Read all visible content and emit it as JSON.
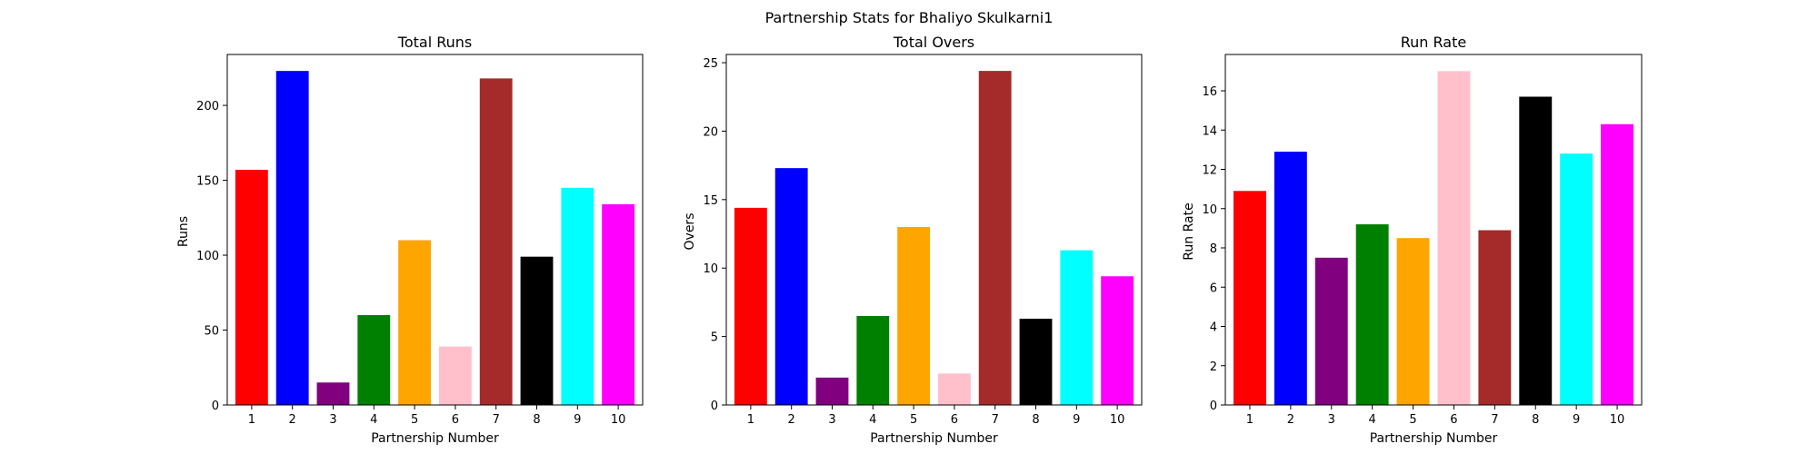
{
  "figure": {
    "title": "Partnership Stats for Bhaliyo Skulkarni1"
  },
  "chart_data": [
    {
      "type": "bar",
      "title": "Total Runs",
      "xlabel": "Partnership Number",
      "ylabel": "Runs",
      "categories": [
        "1",
        "2",
        "3",
        "4",
        "5",
        "6",
        "7",
        "8",
        "9",
        "10"
      ],
      "values": [
        157,
        223,
        15,
        60,
        110,
        39,
        218,
        99,
        145,
        134
      ],
      "colors": [
        "#ff0000",
        "#0000ff",
        "#800080",
        "#008000",
        "#ffa500",
        "#ffc0cb",
        "#a52a2a",
        "#000000",
        "#00ffff",
        "#ff00ff"
      ],
      "ylim": [
        0,
        234
      ],
      "yticks": [
        0,
        50,
        100,
        150,
        200
      ],
      "grid": false
    },
    {
      "type": "bar",
      "title": "Total Overs",
      "xlabel": "Partnership Number",
      "ylabel": "Overs",
      "categories": [
        "1",
        "2",
        "3",
        "4",
        "5",
        "6",
        "7",
        "8",
        "9",
        "10"
      ],
      "values": [
        14.4,
        17.3,
        2.0,
        6.5,
        13.0,
        2.3,
        24.4,
        6.3,
        11.3,
        9.4
      ],
      "colors": [
        "#ff0000",
        "#0000ff",
        "#800080",
        "#008000",
        "#ffa500",
        "#ffc0cb",
        "#a52a2a",
        "#000000",
        "#00ffff",
        "#ff00ff"
      ],
      "ylim": [
        0,
        25.6
      ],
      "yticks": [
        0,
        5,
        10,
        15,
        20,
        25
      ],
      "grid": false
    },
    {
      "type": "bar",
      "title": "Run Rate",
      "xlabel": "Partnership Number",
      "ylabel": "Run Rate",
      "categories": [
        "1",
        "2",
        "3",
        "4",
        "5",
        "6",
        "7",
        "8",
        "9",
        "10"
      ],
      "values": [
        10.9,
        12.9,
        7.5,
        9.2,
        8.5,
        17.0,
        8.9,
        15.7,
        12.8,
        14.3
      ],
      "colors": [
        "#ff0000",
        "#0000ff",
        "#800080",
        "#008000",
        "#ffa500",
        "#ffc0cb",
        "#a52a2a",
        "#000000",
        "#00ffff",
        "#ff00ff"
      ],
      "ylim": [
        0,
        17.85
      ],
      "yticks": [
        0,
        2,
        4,
        6,
        8,
        10,
        12,
        14,
        16
      ],
      "grid": false
    }
  ]
}
